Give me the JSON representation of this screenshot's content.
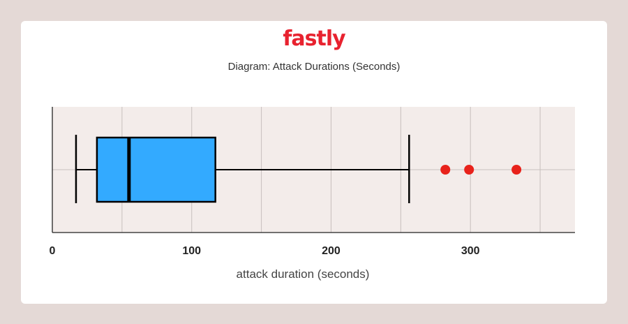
{
  "brand": {
    "logo_text": "fastly"
  },
  "header": {
    "subtitle": "Diagram: Attack Durations (Seconds)"
  },
  "colors": {
    "background": "#e4d9d6",
    "card": "#ffffff",
    "plot_background": "#f3ecea",
    "box_fill": "#33aaff",
    "outlier": "#e8221b",
    "brand": "#e8222f"
  },
  "chart_data": {
    "type": "boxplot",
    "title": "",
    "xlabel": "attack duration (seconds)",
    "ylabel": "",
    "xlim": [
      0,
      375
    ],
    "xticks": [
      0,
      100,
      200,
      300
    ],
    "grid": true,
    "orientation": "horizontal",
    "box": {
      "whisker_low": 17,
      "q1": 32,
      "median": 55,
      "q3": 117,
      "whisker_high": 256
    },
    "outliers": [
      282,
      299,
      333
    ]
  }
}
